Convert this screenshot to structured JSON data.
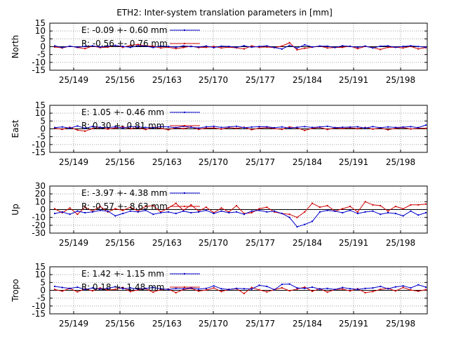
{
  "figure_title": "ETH2: Inter-system translation parameters in [mm]",
  "chart_data": [
    {
      "type": "line",
      "ylabel": "North",
      "ylim": [
        -15,
        15
      ],
      "yticks": [
        "15",
        "10",
        "5",
        "0",
        "-5",
        "-10",
        "-15"
      ],
      "xticks": [
        "25/149",
        "25/156",
        "25/163",
        "25/170",
        "25/177",
        "25/184",
        "25/191",
        "25/198"
      ],
      "grid": true,
      "legend_placement": "top-left",
      "series": [
        {
          "name": "E:  -0.09 +- 0.60 mm",
          "color": "#0000cc",
          "values": [
            0.5,
            -0.5,
            0.3,
            -0.3,
            0.2,
            0.5,
            -0.2,
            0.3,
            0.8,
            0.2,
            -0.4,
            0.5,
            0.3,
            -0.5,
            0.4,
            0.2,
            -0.3,
            0.5,
            0.1,
            -0.2,
            0.4,
            -0.6,
            0.3,
            0.2,
            -0.4,
            0.6,
            -0.3,
            0.2,
            0.5,
            -0.5,
            -1.5,
            0.8,
            -0.9,
            1.2,
            -0.2,
            0.4,
            0.3,
            -0.5,
            0.6,
            0.2,
            -0.3,
            0.4,
            -0.8,
            0.3,
            0.5,
            -0.4,
            0.2,
            0.6,
            0.1,
            -0.3
          ]
        },
        {
          "name": "R:  -0.56 +- 0.76 mm",
          "color": "#cc0000",
          "values": [
            -0.2,
            -0.8,
            0.3,
            -0.5,
            -1.2,
            0.4,
            -0.6,
            -0.3,
            0.8,
            -0.4,
            0.9,
            1.4,
            0.5,
            0.3,
            -0.8,
            -0.3,
            -1.2,
            -0.5,
            0.3,
            -0.6,
            -0.4,
            0.2,
            -0.8,
            -0.3,
            -0.7,
            -1.4,
            0.5,
            -0.4,
            -0.2,
            -0.6,
            0.4,
            2.5,
            -2.0,
            -1.0,
            -0.3,
            0.3,
            -0.8,
            -0.5,
            -0.4,
            0.3,
            -1.2,
            0.2,
            -0.6,
            -1.8,
            -0.4,
            -0.3,
            -0.8,
            0.2,
            -1.4,
            -0.6
          ]
        }
      ]
    },
    {
      "type": "line",
      "ylabel": "East",
      "ylim": [
        -15,
        15
      ],
      "yticks": [
        "15",
        "10",
        "5",
        "0",
        "-5",
        "-10",
        "-15"
      ],
      "xticks": [
        "25/149",
        "25/156",
        "25/163",
        "25/170",
        "25/177",
        "25/184",
        "25/191",
        "25/198"
      ],
      "grid": true,
      "legend_placement": "top-left",
      "series": [
        {
          "name": "E:   1.05 +- 0.46 mm",
          "color": "#0000cc",
          "values": [
            0.8,
            1.2,
            0.5,
            1.8,
            0.4,
            1.5,
            1.0,
            0.8,
            1.3,
            0.6,
            1.5,
            1.2,
            0.9,
            0.7,
            1.4,
            1.2,
            0.8,
            1.6,
            1.0,
            0.5,
            1.3,
            1.6,
            0.9,
            1.2,
            1.6,
            0.8,
            1.1,
            1.4,
            1.3,
            0.7,
            1.2,
            0.5,
            1.0,
            1.4,
            0.9,
            1.2,
            1.6,
            0.8,
            1.0,
            1.1,
            1.3,
            0.6,
            1.4,
            0.7,
            1.2,
            0.9,
            1.1,
            1.4,
            0.8,
            2.4
          ]
        },
        {
          "name": "R:   0.30 +- 0.81 mm",
          "color": "#cc0000",
          "values": [
            0.4,
            -0.3,
            1.0,
            -0.8,
            -1.5,
            0.2,
            0.8,
            -0.2,
            0.5,
            1.3,
            0.1,
            0.6,
            -0.4,
            0.9,
            0.3,
            -0.6,
            0.7,
            0.1,
            1.2,
            -0.3,
            0.5,
            0.6,
            -0.2,
            0.8,
            0.3,
            1.0,
            -0.5,
            0.4,
            0.8,
            0.2,
            -0.3,
            1.2,
            0.6,
            -1.0,
            0.3,
            0.9,
            -0.4,
            0.5,
            0.2,
            0.7,
            0.1,
            0.9,
            -0.2,
            0.5,
            -0.6,
            0.3,
            0.8,
            -0.1,
            0.4,
            0.3
          ]
        }
      ]
    },
    {
      "type": "line",
      "ylabel": "Up",
      "ylim": [
        -30,
        30
      ],
      "yticks": [
        "30",
        "20",
        "10",
        "0",
        "-10",
        "-20",
        "-30"
      ],
      "xticks": [
        "25/149",
        "25/156",
        "25/163",
        "25/170",
        "25/177",
        "25/184",
        "25/191",
        "25/198"
      ],
      "grid": true,
      "legend_placement": "top-left",
      "series": [
        {
          "name": "E:  -3.97 +- 4.38 mm",
          "color": "#0000cc",
          "values": [
            -5,
            -3,
            -6,
            -2,
            -4,
            -3,
            -1,
            -2,
            -8,
            -5,
            -2,
            -3,
            -1,
            -6,
            -4,
            -3,
            -5,
            -2,
            -4,
            -3,
            -1,
            -5,
            -2,
            -4,
            -3,
            -6,
            -2,
            -1,
            -3,
            -2,
            -5,
            -10,
            -22,
            -19,
            -15,
            -3,
            -1,
            -2,
            -4,
            -1,
            -5,
            -3,
            -2,
            -6,
            -4,
            -5,
            -8,
            -2,
            -7,
            -4
          ]
        },
        {
          "name": "R:  -0.57 +- 8.63 mm",
          "color": "#cc0000",
          "values": [
            1,
            -4,
            2,
            -6,
            3,
            -2,
            4,
            -3,
            1,
            -1,
            3,
            -2,
            4,
            5,
            -3,
            2,
            8,
            -1,
            6,
            -2,
            3,
            -4,
            2,
            -3,
            5,
            -5,
            -4,
            1,
            3,
            -3,
            -5,
            -6,
            -10,
            -3,
            8,
            3,
            5,
            -2,
            1,
            4,
            -3,
            10,
            6,
            5,
            -2,
            4,
            1,
            6,
            6,
            7
          ]
        }
      ]
    },
    {
      "type": "line",
      "ylabel": "Tropo",
      "ylim": [
        -15,
        15
      ],
      "yticks": [
        "15",
        "10",
        "5",
        "0",
        "-5",
        "-10",
        "-15"
      ],
      "xticks": [
        "25/149",
        "25/156",
        "25/163",
        "25/170",
        "25/177",
        "25/184",
        "25/191",
        "25/198"
      ],
      "grid": true,
      "legend_placement": "top-left",
      "series": [
        {
          "name": "E:   1.42 +- 1.15 mm",
          "color": "#0000cc",
          "values": [
            2.5,
            1.8,
            1.2,
            2.0,
            0.5,
            1.5,
            0.8,
            1.2,
            2.3,
            1.0,
            1.5,
            0.8,
            1.2,
            1.8,
            1.0,
            0.5,
            1.2,
            1.0,
            1.5,
            0.8,
            1.2,
            2.8,
            1.0,
            0.5,
            1.2,
            1.0,
            0.8,
            3.2,
            2.5,
            0.4,
            3.8,
            4.0,
            1.5,
            1.2,
            2.0,
            0.8,
            1.2,
            0.5,
            1.8,
            1.0,
            0.6,
            1.2,
            1.5,
            2.5,
            1.0,
            2.2,
            2.8,
            1.5,
            3.5,
            2.0
          ]
        },
        {
          "name": "R:   0.18 +- 1.48 mm",
          "color": "#cc0000",
          "values": [
            0.5,
            -0.5,
            1.2,
            -1.0,
            0.8,
            -0.3,
            1.5,
            0.2,
            0.6,
            1.8,
            -0.8,
            0.3,
            1.0,
            -1.2,
            0.5,
            0.8,
            -1.5,
            0.5,
            1.2,
            -0.5,
            0.2,
            1.5,
            -0.8,
            0.6,
            1.0,
            -2.0,
            1.8,
            0.3,
            -1.0,
            0.4,
            1.6,
            -0.3,
            0.8,
            2.0,
            -0.6,
            1.0,
            -1.2,
            0.5,
            0.8,
            -0.4,
            1.0,
            -1.5,
            -0.8,
            0.6,
            1.2,
            -0.4,
            1.8,
            0.2,
            -0.6,
            0.4
          ]
        }
      ]
    }
  ]
}
